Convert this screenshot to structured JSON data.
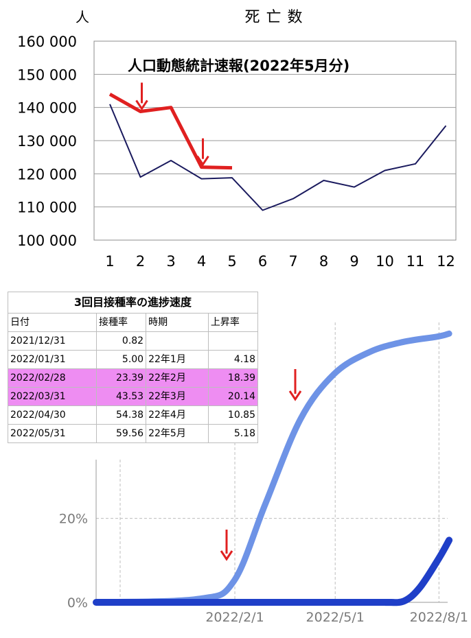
{
  "chart_data": [
    {
      "type": "line",
      "title": "死亡数",
      "ylabel": "人",
      "annotation": "人口動態統計速報(2022年5月分)",
      "categories": [
        "1",
        "2",
        "3",
        "4",
        "5",
        "6",
        "7",
        "8",
        "9",
        "10",
        "11",
        "12"
      ],
      "yticks": [
        "100 000",
        "110 000",
        "120 000",
        "130 000",
        "140 000",
        "150 000",
        "160 000"
      ],
      "ylim": [
        100000,
        160000
      ],
      "grid": true,
      "series": [
        {
          "name": "",
          "color": "#1a1a5e",
          "values": [
            141000,
            119000,
            124000,
            118500,
            118800,
            109000,
            112500,
            118000,
            116000,
            121000,
            123000,
            134500
          ]
        },
        {
          "name": "",
          "color": "#e02020",
          "values": [
            144000,
            138800,
            140000,
            122000,
            121800,
            null,
            null,
            null,
            null,
            null,
            null,
            null
          ]
        }
      ],
      "arrows_at": [
        2,
        4
      ]
    },
    {
      "type": "line",
      "ylabel": "",
      "yticks": [
        "0%",
        "20%"
      ],
      "xticks": [
        "2022/2/1",
        "2022/5/1",
        "2022/8/1"
      ],
      "series": [
        {
          "name": "",
          "color": "#6e93e6",
          "x": [
            "2021/10/1",
            "2021/12/31",
            "2022/1/31",
            "2022/2/28",
            "2022/3/31",
            "2022/4/30",
            "2022/5/31",
            "2022/6/30",
            "2022/7/31",
            "2022/8/10"
          ],
          "values": [
            0,
            0.82,
            5.0,
            23.39,
            43.53,
            54.38,
            59.56,
            62.0,
            63.3,
            64.0
          ]
        },
        {
          "name": "",
          "color": "#1f3fc8",
          "x": [
            "2021/10/1",
            "2022/5/31",
            "2022/6/15",
            "2022/7/1",
            "2022/7/15",
            "2022/8/1",
            "2022/8/10"
          ],
          "values": [
            0,
            0,
            0,
            0.3,
            3.5,
            10.5,
            14.8
          ]
        }
      ],
      "arrows_at": [
        "2022/2/1",
        "2022/4/10"
      ]
    }
  ],
  "table": {
    "title": "3回目接種率の進捗速度",
    "headers": [
      "日付",
      "接種率",
      "時期",
      "上昇率"
    ],
    "rows": [
      [
        "2021/12/31",
        "0.82",
        "",
        ""
      ],
      [
        "2022/01/31",
        "5.00",
        "22年1月",
        "4.18"
      ],
      [
        "2022/02/28",
        "23.39",
        "22年2月",
        "18.39"
      ],
      [
        "2022/03/31",
        "43.53",
        "22年3月",
        "20.14"
      ],
      [
        "2022/04/30",
        "54.38",
        "22年4月",
        "10.85"
      ],
      [
        "2022/05/31",
        "59.56",
        "22年5月",
        "5.18"
      ]
    ],
    "highlight_rows": [
      2,
      3
    ],
    "highlight_color": "#ee8df2"
  }
}
